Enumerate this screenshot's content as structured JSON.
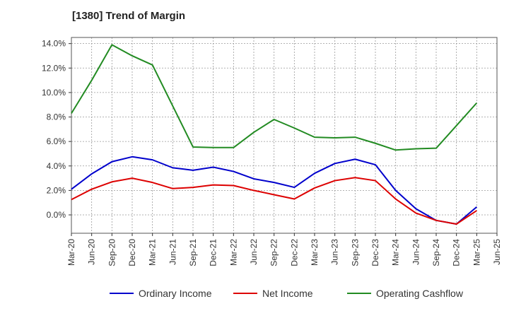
{
  "chart_data": {
    "type": "line",
    "title": "[1380]  Trend of Margin",
    "xlabel": "",
    "ylabel": "",
    "ylim": [
      -1.5,
      14.5
    ],
    "y_ticks": [
      0,
      2,
      4,
      6,
      8,
      10,
      12,
      14
    ],
    "y_tick_labels": [
      "0.0%",
      "2.0%",
      "4.0%",
      "6.0%",
      "8.0%",
      "10.0%",
      "12.0%",
      "14.0%"
    ],
    "categories": [
      "Mar-20",
      "Jun-20",
      "Sep-20",
      "Dec-20",
      "Mar-21",
      "Jun-21",
      "Sep-21",
      "Dec-21",
      "Mar-22",
      "Jun-22",
      "Sep-22",
      "Dec-22",
      "Mar-23",
      "Jun-23",
      "Sep-23",
      "Dec-23",
      "Mar-24",
      "Jun-24",
      "Sep-24",
      "Dec-24",
      "Mar-25",
      "Jun-25"
    ],
    "grid": true,
    "legend_position": "bottom",
    "series": [
      {
        "name": "Ordinary Income",
        "color": "#0000cc",
        "values": [
          2.1,
          3.35,
          4.35,
          4.75,
          4.5,
          3.85,
          3.65,
          3.9,
          3.55,
          2.95,
          2.65,
          2.25,
          3.4,
          4.2,
          4.55,
          4.1,
          2.0,
          0.5,
          -0.45,
          -0.75,
          0.65,
          null
        ]
      },
      {
        "name": "Net Income",
        "color": "#dd0000",
        "values": [
          1.25,
          2.1,
          2.7,
          3.0,
          2.65,
          2.15,
          2.25,
          2.45,
          2.4,
          2.0,
          1.65,
          1.3,
          2.2,
          2.8,
          3.05,
          2.8,
          1.3,
          0.15,
          -0.45,
          -0.75,
          0.35,
          null
        ]
      },
      {
        "name": "Operating Cashflow",
        "color": "#228b22",
        "values": [
          8.3,
          11.0,
          13.9,
          13.0,
          12.25,
          8.9,
          5.55,
          5.5,
          5.5,
          6.75,
          7.8,
          7.1,
          6.35,
          6.3,
          6.35,
          5.85,
          5.3,
          5.4,
          5.45,
          7.3,
          9.15,
          null
        ]
      }
    ]
  }
}
